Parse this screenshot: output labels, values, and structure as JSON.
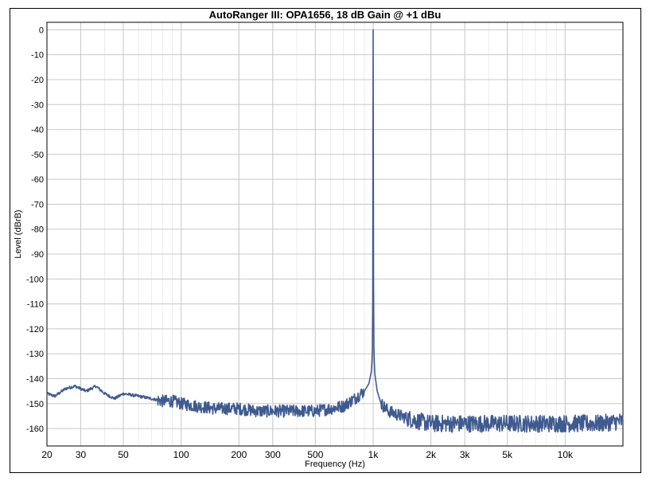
{
  "chart_data": {
    "type": "line",
    "title": "AutoRanger III: OPA1656, 18 dB Gain @ +1 dBu",
    "xlabel": "Frequency (Hz)",
    "ylabel": "Level (dBrB)",
    "x_scale": "log",
    "xlim": [
      20,
      20000
    ],
    "ylim": [
      -165,
      0
    ],
    "grid": true,
    "x_ticks": [
      20,
      30,
      50,
      100,
      200,
      300,
      500,
      1000,
      2000,
      3000,
      5000,
      10000
    ],
    "x_tick_labels": [
      "20",
      "30",
      "50",
      "100",
      "200",
      "300",
      "500",
      "1k",
      "2k",
      "3k",
      "5k",
      "10k"
    ],
    "y_ticks": [
      0,
      -10,
      -20,
      -30,
      -40,
      -50,
      -60,
      -70,
      -80,
      -90,
      -100,
      -110,
      -120,
      -130,
      -140,
      -150,
      -160
    ],
    "y_tick_labels": [
      "0",
      "-10",
      "-20",
      "-30",
      "-40",
      "-50",
      "-60",
      "-70",
      "-80",
      "-90",
      "-100",
      "-110",
      "-120",
      "-130",
      "-140",
      "-150",
      "-160"
    ],
    "series_color": "#3f5a8f",
    "series": [
      {
        "x": [
          20,
          22,
          25,
          28,
          32,
          36,
          40,
          45,
          50,
          60,
          70,
          80,
          90,
          100,
          120,
          150,
          200,
          250,
          300,
          400,
          500,
          600,
          700,
          800,
          900,
          950,
          980,
          990,
          995,
          1000,
          1005,
          1010,
          1020,
          1050,
          1100,
          1200,
          1400,
          1700,
          2000,
          3000,
          5000,
          7000,
          10000,
          15000,
          20000
        ],
        "y": [
          -146,
          -147,
          -144,
          -143,
          -145,
          -143,
          -146,
          -148,
          -146,
          -147,
          -148,
          -149,
          -149,
          -150,
          -151,
          -152,
          -152,
          -153,
          -153,
          -153,
          -153,
          -152,
          -151,
          -148,
          -145,
          -142,
          -137,
          -130,
          -110,
          0,
          -110,
          -130,
          -138,
          -145,
          -150,
          -153,
          -155,
          -157,
          -158,
          -158,
          -158,
          -158,
          -158,
          -158,
          -157
        ]
      }
    ]
  }
}
